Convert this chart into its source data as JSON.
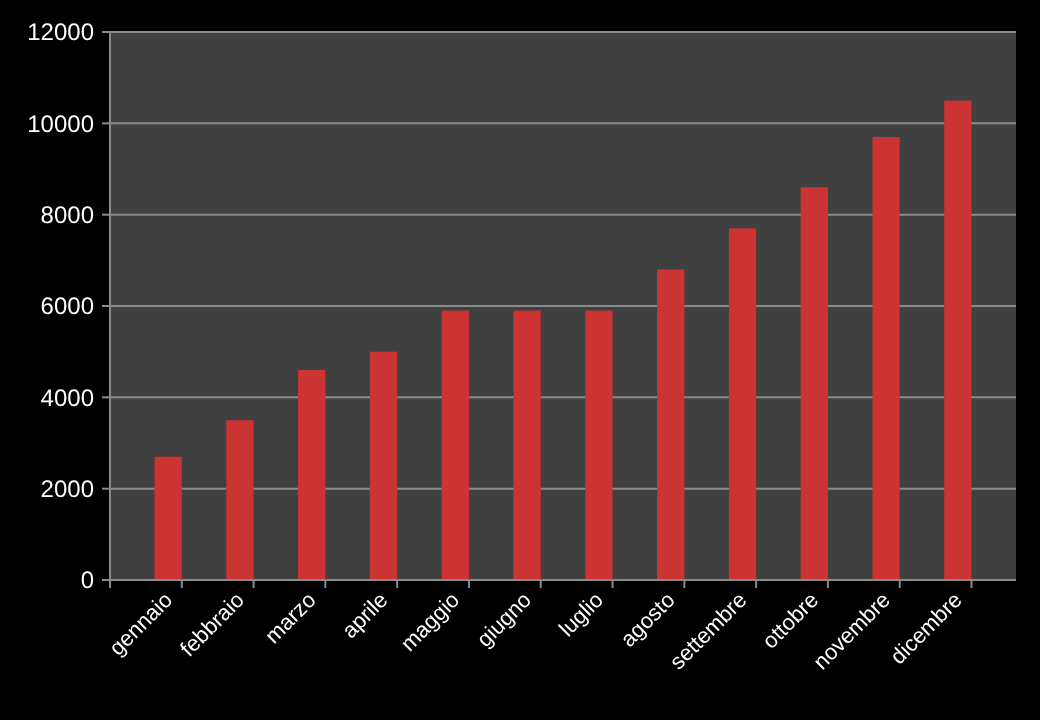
{
  "chart_data": {
    "type": "bar",
    "categories": [
      "gennaio",
      "febbraio",
      "marzo",
      "aprile",
      "maggio",
      "giugno",
      "luglio",
      "agosto",
      "settembre",
      "ottobre",
      "novembre",
      "dicembre"
    ],
    "values": [
      2700,
      3500,
      4600,
      5000,
      5900,
      5900,
      5900,
      6800,
      7700,
      8600,
      9700,
      10500
    ],
    "color": "#cc3333",
    "ylim": [
      0,
      12000
    ],
    "yticks": [
      0,
      2000,
      4000,
      6000,
      8000,
      10000,
      12000
    ],
    "grid": "y"
  }
}
